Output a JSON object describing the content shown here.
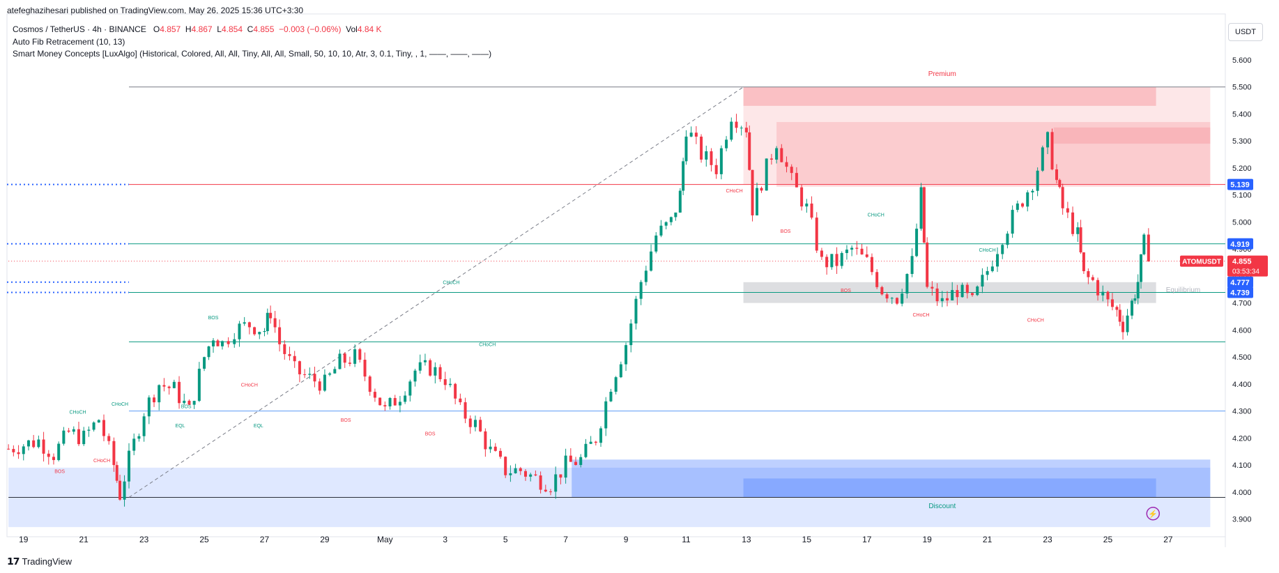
{
  "header": {
    "published_line": "atefeghazihesari published on TradingView.com, May 26, 2025 15:36 UTC+3:30",
    "symbol": "Cosmos / TetherUS · 4h · BINANCE",
    "o_label": "O",
    "o_value": "4.857",
    "h_label": "H",
    "h_value": "4.867",
    "l_label": "L",
    "l_value": "4.854",
    "c_label": "C",
    "c_value": "4.855",
    "change": "−0.003 (−0.06%)",
    "vol_label": "Vol",
    "vol_value": "4.84 K",
    "indicator_1": "Auto Fib Retracement (10, 13)",
    "indicator_2": "Smart Money Concepts [LuxAlgo] (Historical, Colored, All, All, Tiny, All, All, Small, 50, 10, 10, Atr, 3, 0.1, Tiny, , 1, ——, ——, ——)",
    "currency_button": "USDT"
  },
  "footer": {
    "brand": "TradingView"
  },
  "colors": {
    "up": "#089981",
    "down": "#f23645",
    "blue": "#2962ff",
    "premium": "#f23645",
    "discount": "#2962ff"
  },
  "chart_data": {
    "type": "candlestick",
    "symbol": "ATOMUSDT",
    "interval": "4h",
    "ylim": [
      3.86,
      5.6
    ],
    "y_ticks": [
      "3.900",
      "4.000",
      "4.100",
      "4.200",
      "4.300",
      "4.400",
      "4.500",
      "4.600",
      "4.700",
      "4.800",
      "4.900",
      "5.000",
      "5.100",
      "5.200",
      "5.300",
      "5.400",
      "5.500",
      "5.600"
    ],
    "x_ticks": [
      {
        "label": "19",
        "t": 0
      },
      {
        "label": "21",
        "t": 2
      },
      {
        "label": "23",
        "t": 4
      },
      {
        "label": "25",
        "t": 6
      },
      {
        "label": "27",
        "t": 8
      },
      {
        "label": "29",
        "t": 10
      },
      {
        "label": "May",
        "t": 12
      },
      {
        "label": "3",
        "t": 14
      },
      {
        "label": "5",
        "t": 16
      },
      {
        "label": "7",
        "t": 18
      },
      {
        "label": "9",
        "t": 20
      },
      {
        "label": "11",
        "t": 22
      },
      {
        "label": "13",
        "t": 24
      },
      {
        "label": "15",
        "t": 26
      },
      {
        "label": "17",
        "t": 28
      },
      {
        "label": "19",
        "t": 30
      },
      {
        "label": "21",
        "t": 32
      },
      {
        "label": "23",
        "t": 34
      },
      {
        "label": "25",
        "t": 36
      },
      {
        "label": "27",
        "t": 38
      }
    ],
    "price_labels": [
      {
        "text": "5.139",
        "value": 5.139,
        "color": "#2962ff"
      },
      {
        "text": "4.919",
        "value": 4.919,
        "color": "#2962ff"
      },
      {
        "text": "4.777",
        "value": 4.777,
        "color": "#2962ff"
      },
      {
        "text": "4.739",
        "value": 4.739,
        "color": "#2962ff"
      }
    ],
    "last_price": {
      "symbol": "ATOMUSDT",
      "price": "4.855",
      "countdown": "03:53:34",
      "value": 4.855
    },
    "close_path": [
      [
        -0.5,
        4.16
      ],
      [
        0.5,
        4.19
      ],
      [
        1,
        4.14
      ],
      [
        1.5,
        4.22
      ],
      [
        2,
        4.2
      ],
      [
        2.5,
        4.27
      ],
      [
        3,
        4.1
      ],
      [
        3.2,
        3.99
      ],
      [
        3.5,
        4.12
      ],
      [
        4,
        4.3
      ],
      [
        4.5,
        4.4
      ],
      [
        5,
        4.38
      ],
      [
        5.5,
        4.3
      ],
      [
        6,
        4.5
      ],
      [
        6.3,
        4.58
      ],
      [
        6.6,
        4.55
      ],
      [
        7,
        4.6
      ],
      [
        7.5,
        4.62
      ],
      [
        8,
        4.6
      ],
      [
        8.2,
        4.67
      ],
      [
        8.5,
        4.55
      ],
      [
        9,
        4.45
      ],
      [
        9.5,
        4.42
      ],
      [
        10,
        4.4
      ],
      [
        10.5,
        4.48
      ],
      [
        11,
        4.5
      ],
      [
        11.5,
        4.4
      ],
      [
        12,
        4.3
      ],
      [
        12.5,
        4.36
      ],
      [
        13,
        4.45
      ],
      [
        13.5,
        4.46
      ],
      [
        14,
        4.42
      ],
      [
        14.5,
        4.3
      ],
      [
        15,
        4.25
      ],
      [
        15.5,
        4.15
      ],
      [
        16,
        4.08
      ],
      [
        16.5,
        4.08
      ],
      [
        17,
        4.05
      ],
      [
        17.5,
        4.03
      ],
      [
        18,
        4.1
      ],
      [
        18.5,
        4.12
      ],
      [
        19,
        4.2
      ],
      [
        19.5,
        4.4
      ],
      [
        20,
        4.55
      ],
      [
        20.5,
        4.78
      ],
      [
        21,
        4.95
      ],
      [
        21.5,
        5.0
      ],
      [
        21.8,
        5.1
      ],
      [
        22,
        5.35
      ],
      [
        22.5,
        5.25
      ],
      [
        23,
        5.2
      ],
      [
        23.5,
        5.4
      ],
      [
        24,
        5.35
      ],
      [
        24.2,
        5.05
      ],
      [
        24.5,
        5.15
      ],
      [
        25,
        5.3
      ],
      [
        25.5,
        5.15
      ],
      [
        26,
        5.05
      ],
      [
        26.5,
        4.85
      ],
      [
        27,
        4.85
      ],
      [
        27.5,
        4.9
      ],
      [
        28,
        4.85
      ],
      [
        28.5,
        4.75
      ],
      [
        29,
        4.72
      ],
      [
        29.5,
        4.85
      ],
      [
        29.8,
        5.1
      ],
      [
        30,
        4.75
      ],
      [
        30.5,
        4.7
      ],
      [
        31,
        4.75
      ],
      [
        31.5,
        4.7
      ],
      [
        32,
        4.82
      ],
      [
        32.5,
        4.95
      ],
      [
        33,
        5.05
      ],
      [
        33.5,
        5.15
      ],
      [
        34,
        5.3
      ],
      [
        34.3,
        5.15
      ],
      [
        34.5,
        5.05
      ],
      [
        35,
        4.95
      ],
      [
        35.2,
        4.8
      ],
      [
        35.5,
        4.78
      ],
      [
        36,
        4.7
      ],
      [
        36.3,
        4.67
      ],
      [
        36.5,
        4.62
      ],
      [
        36.8,
        4.7
      ],
      [
        37,
        4.78
      ],
      [
        37.2,
        4.92
      ],
      [
        37.5,
        4.855
      ]
    ],
    "zones": [
      {
        "name": "premium-zone",
        "y_top": 5.5,
        "y_bottom": 5.139,
        "t_start": 23.9,
        "t_end": 39.4,
        "color": "#f23645",
        "opacity": 0.12
      },
      {
        "name": "premium-box-1",
        "y_top": 5.5,
        "y_bottom": 5.43,
        "t_start": 23.9,
        "t_end": 37.6,
        "color": "#f23645",
        "opacity": 0.22
      },
      {
        "name": "premium-box-2",
        "y_top": 5.37,
        "y_bottom": 5.13,
        "t_start": 25,
        "t_end": 39.4,
        "color": "#f23645",
        "opacity": 0.15
      },
      {
        "name": "premium-box-3",
        "y_top": 5.35,
        "y_bottom": 5.29,
        "t_start": 34.2,
        "t_end": 39.4,
        "color": "#f23645",
        "opacity": 0.15
      },
      {
        "name": "equilibrium-zone",
        "y_top": 4.777,
        "y_bottom": 4.7,
        "t_start": 23.9,
        "t_end": 37.6,
        "color": "#787b86",
        "opacity": 0.25
      },
      {
        "name": "discount-zone",
        "y_top": 4.09,
        "y_bottom": 3.87,
        "t_start": -0.5,
        "t_end": 39.4,
        "color": "#2962ff",
        "opacity": 0.15
      },
      {
        "name": "discount-ob-1",
        "y_top": 4.12,
        "y_bottom": 3.98,
        "t_start": 18.2,
        "t_end": 39.4,
        "color": "#2962ff",
        "opacity": 0.3
      },
      {
        "name": "discount-ob-2",
        "y_top": 4.05,
        "y_bottom": 3.98,
        "t_start": 23.9,
        "t_end": 37.6,
        "color": "#2962ff",
        "opacity": 0.25
      }
    ],
    "zone_labels": [
      {
        "text": "Premium",
        "t": 30.5,
        "y": 5.54,
        "color": "#f23645"
      },
      {
        "text": "Discount",
        "t": 30.5,
        "y": 3.94,
        "color": "#089981"
      },
      {
        "text": "Equilibrium",
        "t": 38.5,
        "y": 4.74,
        "color": "#b2b5be"
      }
    ],
    "structure_labels": [
      {
        "text": "CHoCH",
        "t": 1.8,
        "y": 4.29,
        "color": "#089981"
      },
      {
        "text": "CHoCH",
        "t": 2.6,
        "y": 4.11,
        "color": "#f23645"
      },
      {
        "text": "BOS",
        "t": 1.2,
        "y": 4.07,
        "color": "#f23645"
      },
      {
        "text": "CHoCH",
        "t": 3.2,
        "y": 4.32,
        "color": "#089981"
      },
      {
        "text": "EQL",
        "t": 5.2,
        "y": 4.24,
        "color": "#089981"
      },
      {
        "text": "EQL",
        "t": 7.8,
        "y": 4.24,
        "color": "#089981"
      },
      {
        "text": "BOS",
        "t": 6.3,
        "y": 4.64,
        "color": "#089981"
      },
      {
        "text": "CHoCH",
        "t": 7.5,
        "y": 4.39,
        "color": "#f23645"
      },
      {
        "text": "BOS",
        "t": 10.7,
        "y": 4.26,
        "color": "#f23645"
      },
      {
        "text": "BOS",
        "t": 13.5,
        "y": 4.21,
        "color": "#f23645"
      },
      {
        "text": "CHoCH",
        "t": 15.4,
        "y": 4.54,
        "color": "#089981"
      },
      {
        "text": "CHoCH",
        "t": 14.2,
        "y": 4.77,
        "color": "#089981"
      },
      {
        "text": "CHoCH",
        "t": 23.6,
        "y": 5.11,
        "color": "#f23645"
      },
      {
        "text": "BOS",
        "t": 25.3,
        "y": 4.96,
        "color": "#f23645"
      },
      {
        "text": "CHoCH",
        "t": 28.3,
        "y": 5.02,
        "color": "#089981"
      },
      {
        "text": "BOS",
        "t": 27.3,
        "y": 4.74,
        "color": "#f23645"
      },
      {
        "text": "CHoCH",
        "t": 32,
        "y": 4.89,
        "color": "#089981"
      },
      {
        "text": "CHoCH",
        "t": 29.8,
        "y": 4.65,
        "color": "#f23645"
      },
      {
        "text": "CHoCH",
        "t": 33.6,
        "y": 4.63,
        "color": "#f23645"
      },
      {
        "text": "BOS",
        "t": 5.4,
        "y": 4.31,
        "color": "#089981"
      }
    ],
    "horizontal_levels": [
      {
        "value": 5.5,
        "t_start": 3.5,
        "color": "#787b86",
        "style": "solid"
      },
      {
        "value": 5.139,
        "t_start": 3.5,
        "color": "#f23645",
        "style": "solid"
      },
      {
        "value": 4.919,
        "t_start": 3.5,
        "color": "#089981",
        "style": "solid"
      },
      {
        "value": 4.855,
        "t_start": -0.5,
        "color": "#f23645",
        "style": "dotted"
      },
      {
        "value": 4.739,
        "t_start": 3.5,
        "color": "#089981",
        "style": "solid"
      },
      {
        "value": 4.556,
        "t_start": 3.5,
        "color": "#089981",
        "style": "solid"
      },
      {
        "value": 4.3,
        "t_start": 3.5,
        "color": "#5b9cf6",
        "style": "solid"
      },
      {
        "value": 3.98,
        "t_start": -0.5,
        "color": "#2a2e39",
        "style": "solid"
      }
    ],
    "fib_dash": {
      "t1": 3.5,
      "y1": 3.98,
      "t2": 23.9,
      "y2": 5.5
    }
  }
}
